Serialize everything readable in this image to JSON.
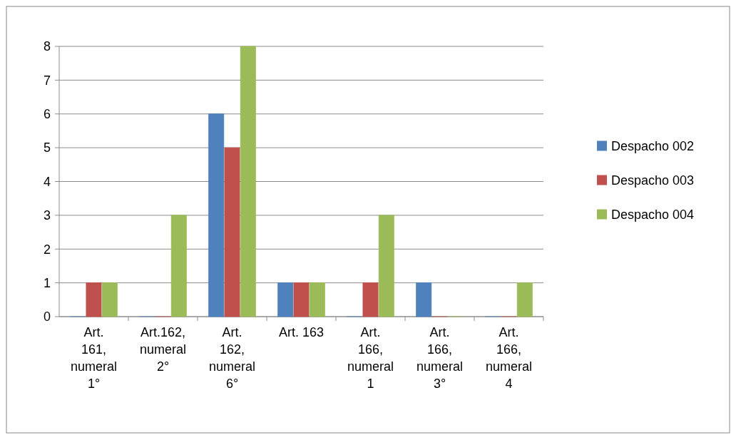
{
  "chart_data": {
    "type": "bar",
    "categories": [
      "Art. 161, numeral 1°",
      "Art.162, numeral 2°",
      "Art. 162, numeral 6°",
      "Art. 163",
      "Art. 166, numeral 1",
      "Art. 166, numeral 3°",
      "Art. 166, numeral 4"
    ],
    "series": [
      {
        "name": "Despacho 002",
        "color": "#4f81bd",
        "values": [
          0,
          0,
          6,
          1,
          0,
          1,
          0
        ]
      },
      {
        "name": "Despacho 003",
        "color": "#c0504d",
        "values": [
          1,
          0,
          5,
          1,
          1,
          0,
          0
        ]
      },
      {
        "name": "Despacho 004",
        "color": "#9bbb59",
        "values": [
          1,
          3,
          8,
          1,
          3,
          0,
          1
        ]
      }
    ],
    "ylim": [
      0,
      8
    ],
    "yticks": [
      0,
      1,
      2,
      3,
      4,
      5,
      6,
      7,
      8
    ],
    "grid": "y",
    "legend": "right"
  }
}
